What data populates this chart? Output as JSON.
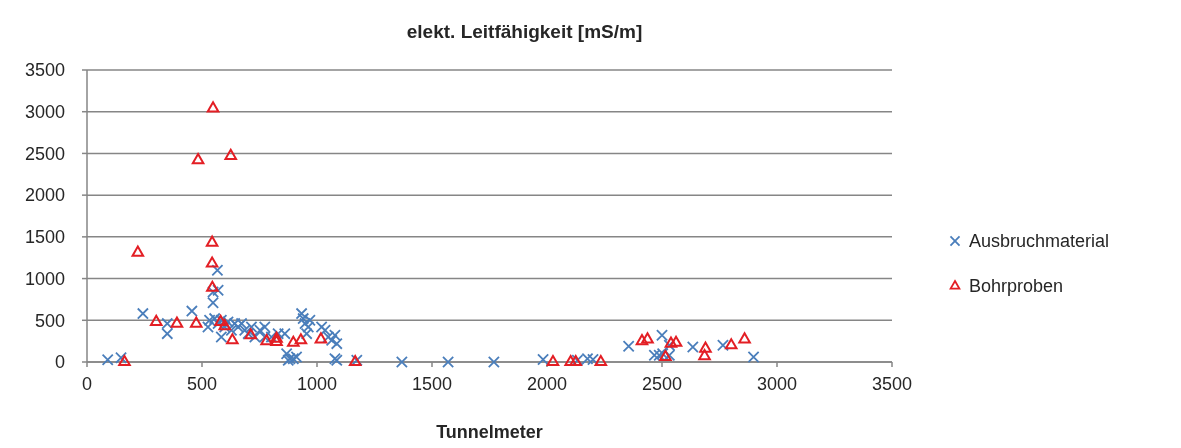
{
  "chart_data": {
    "type": "scatter",
    "title": "elekt. Leitfähigkeit [mS/m]",
    "xlabel": "Tunnelmeter",
    "xlim": [
      0,
      3500
    ],
    "xticks": [
      0,
      500,
      1000,
      1500,
      2000,
      2500,
      3000,
      3500
    ],
    "ylim": [
      0,
      3500
    ],
    "yticks": [
      0,
      500,
      1000,
      1500,
      2000,
      2500,
      3000,
      3500
    ],
    "grid": "y",
    "legend": "right",
    "series": [
      {
        "name": "Ausbruchmaterial",
        "color": "#4a7ebb",
        "marker": "cross",
        "x": [
          90,
          148,
          243,
          349,
          349,
          456,
          526,
          548,
          548,
          567,
          570,
          533,
          555,
          570,
          584,
          599,
          613,
          584,
          628,
          642,
          657,
          672,
          686,
          701,
          715,
          730,
          752,
          773,
          773,
          802,
          831,
          860,
          868,
          882,
          897,
          911,
          875,
          933,
          940,
          948,
          962,
          955,
          969,
          1020,
          1035,
          1049,
          1064,
          1078,
          1086,
          1078,
          1086,
          1173,
          1369,
          1570,
          1769,
          1983,
          2132,
          2176,
          2200,
          2355,
          2500,
          2467,
          2488,
          2503,
          2532,
          2532,
          2634,
          2765,
          2898
        ],
        "values": [
          28,
          50,
          580,
          460,
          340,
          610,
          420,
          710,
          840,
          1100,
          860,
          500,
          520,
          460,
          500,
          420,
          480,
          300,
          380,
          460,
          420,
          460,
          380,
          340,
          420,
          300,
          380,
          420,
          300,
          300,
          340,
          340,
          100,
          40,
          40,
          60,
          20,
          580,
          520,
          460,
          420,
          340,
          500,
          420,
          380,
          300,
          260,
          320,
          220,
          40,
          20,
          20,
          0,
          0,
          0,
          30,
          20,
          40,
          30,
          190,
          320,
          80,
          80,
          100,
          80,
          200,
          180,
          200,
          60
        ]
      },
      {
        "name": "Bohrproben",
        "color": "#e31e24",
        "marker": "triangle",
        "x": [
          548,
          483,
          625,
          221,
          544,
          544,
          545,
          163,
          301,
          391,
          475,
          581,
          599,
          632,
          712,
          781,
          824,
          824,
          897,
          930,
          1017,
          1166,
          2026,
          2103,
          2125,
          2234,
          2413,
          2437,
          2515,
          2539,
          2561,
          2685,
          2689,
          2801,
          2859
        ],
        "values": [
          3040,
          2420,
          2470,
          1310,
          1430,
          1180,
          890,
          0,
          480,
          460,
          460,
          480,
          430,
          260,
          320,
          250,
          280,
          240,
          230,
          260,
          270,
          0,
          0,
          0,
          0,
          0,
          250,
          270,
          60,
          220,
          230,
          70,
          160,
          200,
          270
        ]
      }
    ]
  }
}
